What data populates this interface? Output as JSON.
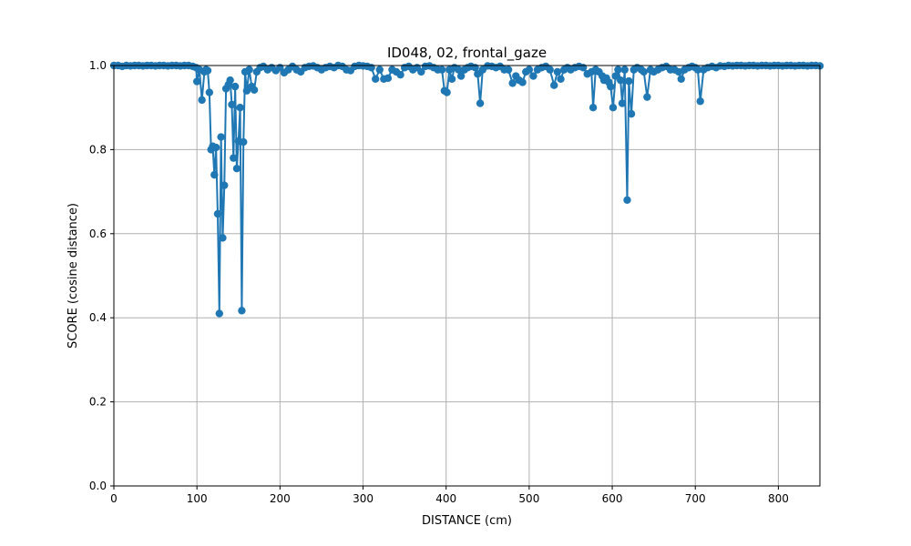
{
  "chart_data": {
    "type": "line",
    "title": "ID048, 02, frontal_gaze",
    "xlabel": "DISTANCE (cm)",
    "ylabel": "SCORE (cosine distance)",
    "xlim": [
      0,
      850
    ],
    "ylim": [
      0,
      1
    ],
    "x_ticks": [
      0,
      100,
      200,
      300,
      400,
      500,
      600,
      700,
      800
    ],
    "y_ticks": [
      0.0,
      0.2,
      0.4,
      0.6,
      0.8,
      1.0
    ],
    "x_tick_labels": [
      "0",
      "100",
      "200",
      "300",
      "400",
      "500",
      "600",
      "700",
      "800"
    ],
    "y_tick_labels": [
      "0.0",
      "0.2",
      "0.4",
      "0.6",
      "0.8",
      "1.0"
    ],
    "grid": true,
    "colors": {
      "series": "#1f77b4",
      "grid": "#b0b0b0",
      "axis": "#000000"
    },
    "series": [
      {
        "name": "score",
        "points": [
          [
            0,
            1.0
          ],
          [
            5,
            1.0
          ],
          [
            10,
            0.998
          ],
          [
            15,
            1.0
          ],
          [
            20,
            0.999
          ],
          [
            25,
            1.0
          ],
          [
            30,
            1.0
          ],
          [
            35,
            0.999
          ],
          [
            40,
            1.0
          ],
          [
            45,
            1.0
          ],
          [
            50,
            0.999
          ],
          [
            55,
            1.0
          ],
          [
            60,
            1.0
          ],
          [
            65,
            0.999
          ],
          [
            70,
            1.0
          ],
          [
            75,
            1.0
          ],
          [
            80,
            0.999
          ],
          [
            85,
            1.0
          ],
          [
            90,
            1.0
          ],
          [
            95,
            0.998
          ],
          [
            99,
            0.995
          ],
          [
            100,
            0.962
          ],
          [
            103,
            0.99
          ],
          [
            106,
            0.918
          ],
          [
            109,
            0.985
          ],
          [
            111,
            0.99
          ],
          [
            113,
            0.988
          ],
          [
            115,
            0.936
          ],
          [
            117,
            0.8
          ],
          [
            119,
            0.808
          ],
          [
            121,
            0.74
          ],
          [
            123,
            0.805
          ],
          [
            125,
            0.647
          ],
          [
            127,
            0.41
          ],
          [
            129,
            0.83
          ],
          [
            131,
            0.59
          ],
          [
            133,
            0.715
          ],
          [
            135,
            0.945
          ],
          [
            138,
            0.955
          ],
          [
            140,
            0.965
          ],
          [
            142,
            0.907
          ],
          [
            144,
            0.78
          ],
          [
            146,
            0.95
          ],
          [
            148,
            0.755
          ],
          [
            150,
            0.82
          ],
          [
            152,
            0.9
          ],
          [
            154,
            0.417
          ],
          [
            156,
            0.818
          ],
          [
            158,
            0.985
          ],
          [
            160,
            0.94
          ],
          [
            163,
            0.99
          ],
          [
            166,
            0.95
          ],
          [
            169,
            0.942
          ],
          [
            172,
            0.985
          ],
          [
            176,
            0.995
          ],
          [
            180,
            0.998
          ],
          [
            185,
            0.99
          ],
          [
            190,
            0.995
          ],
          [
            195,
            0.988
          ],
          [
            200,
            0.995
          ],
          [
            205,
            0.983
          ],
          [
            210,
            0.99
          ],
          [
            215,
            0.998
          ],
          [
            220,
            0.99
          ],
          [
            225,
            0.985
          ],
          [
            230,
            0.995
          ],
          [
            235,
            0.998
          ],
          [
            240,
            0.999
          ],
          [
            245,
            0.995
          ],
          [
            250,
            0.99
          ],
          [
            255,
            0.995
          ],
          [
            260,
            0.998
          ],
          [
            265,
            0.995
          ],
          [
            270,
            1.0
          ],
          [
            275,
            0.998
          ],
          [
            280,
            0.99
          ],
          [
            285,
            0.988
          ],
          [
            290,
            0.998
          ],
          [
            295,
            1.0
          ],
          [
            300,
            0.999
          ],
          [
            305,
            0.998
          ],
          [
            310,
            0.995
          ],
          [
            315,
            0.968
          ],
          [
            320,
            0.99
          ],
          [
            325,
            0.968
          ],
          [
            330,
            0.97
          ],
          [
            335,
            0.99
          ],
          [
            340,
            0.985
          ],
          [
            345,
            0.978
          ],
          [
            350,
            0.995
          ],
          [
            355,
            0.998
          ],
          [
            360,
            0.99
          ],
          [
            365,
            0.995
          ],
          [
            370,
            0.985
          ],
          [
            375,
            0.998
          ],
          [
            380,
            0.999
          ],
          [
            385,
            0.995
          ],
          [
            390,
            0.99
          ],
          [
            395,
            0.99
          ],
          [
            398,
            0.94
          ],
          [
            401,
            0.936
          ],
          [
            404,
            0.99
          ],
          [
            407,
            0.968
          ],
          [
            410,
            0.995
          ],
          [
            415,
            0.99
          ],
          [
            418,
            0.975
          ],
          [
            422,
            0.99
          ],
          [
            426,
            0.995
          ],
          [
            430,
            0.998
          ],
          [
            435,
            0.995
          ],
          [
            438,
            0.98
          ],
          [
            441,
            0.91
          ],
          [
            444,
            0.99
          ],
          [
            450,
            0.999
          ],
          [
            455,
            0.998
          ],
          [
            460,
            0.995
          ],
          [
            465,
            0.998
          ],
          [
            470,
            0.99
          ],
          [
            475,
            0.99
          ],
          [
            480,
            0.958
          ],
          [
            484,
            0.975
          ],
          [
            488,
            0.965
          ],
          [
            492,
            0.96
          ],
          [
            496,
            0.985
          ],
          [
            500,
            0.99
          ],
          [
            505,
            0.975
          ],
          [
            510,
            0.99
          ],
          [
            515,
            0.995
          ],
          [
            520,
            0.998
          ],
          [
            525,
            0.99
          ],
          [
            530,
            0.953
          ],
          [
            534,
            0.985
          ],
          [
            538,
            0.968
          ],
          [
            542,
            0.99
          ],
          [
            546,
            0.995
          ],
          [
            550,
            0.99
          ],
          [
            555,
            0.995
          ],
          [
            560,
            0.998
          ],
          [
            565,
            0.995
          ],
          [
            570,
            0.98
          ],
          [
            575,
            0.985
          ],
          [
            577,
            0.9
          ],
          [
            580,
            0.99
          ],
          [
            584,
            0.985
          ],
          [
            588,
            0.975
          ],
          [
            590,
            0.965
          ],
          [
            593,
            0.97
          ],
          [
            596,
            0.96
          ],
          [
            598,
            0.95
          ],
          [
            601,
            0.9
          ],
          [
            604,
            0.975
          ],
          [
            607,
            0.99
          ],
          [
            610,
            0.965
          ],
          [
            612,
            0.91
          ],
          [
            615,
            0.99
          ],
          [
            618,
            0.68
          ],
          [
            620,
            0.963
          ],
          [
            623,
            0.885
          ],
          [
            626,
            0.99
          ],
          [
            630,
            0.995
          ],
          [
            635,
            0.99
          ],
          [
            638,
            0.985
          ],
          [
            642,
            0.925
          ],
          [
            646,
            0.99
          ],
          [
            650,
            0.985
          ],
          [
            655,
            0.99
          ],
          [
            660,
            0.995
          ],
          [
            665,
            0.998
          ],
          [
            670,
            0.99
          ],
          [
            675,
            0.99
          ],
          [
            680,
            0.985
          ],
          [
            683,
            0.968
          ],
          [
            687,
            0.99
          ],
          [
            692,
            0.995
          ],
          [
            696,
            0.998
          ],
          [
            700,
            0.995
          ],
          [
            703,
            0.99
          ],
          [
            706,
            0.915
          ],
          [
            710,
            0.99
          ],
          [
            715,
            0.995
          ],
          [
            720,
            0.998
          ],
          [
            725,
            0.995
          ],
          [
            730,
            0.999
          ],
          [
            735,
            0.998
          ],
          [
            740,
            1.0
          ],
          [
            745,
            0.999
          ],
          [
            750,
            1.0
          ],
          [
            755,
            1.0
          ],
          [
            760,
            0.999
          ],
          [
            765,
            1.0
          ],
          [
            770,
            1.0
          ],
          [
            775,
            0.999
          ],
          [
            780,
            1.0
          ],
          [
            785,
            1.0
          ],
          [
            790,
            0.999
          ],
          [
            795,
            1.0
          ],
          [
            800,
            1.0
          ],
          [
            805,
            0.999
          ],
          [
            810,
            1.0
          ],
          [
            815,
            1.0
          ],
          [
            820,
            0.999
          ],
          [
            825,
            1.0
          ],
          [
            830,
            1.0
          ],
          [
            835,
            0.999
          ],
          [
            840,
            1.0
          ],
          [
            845,
            1.0
          ],
          [
            850,
            0.999
          ]
        ]
      }
    ]
  }
}
